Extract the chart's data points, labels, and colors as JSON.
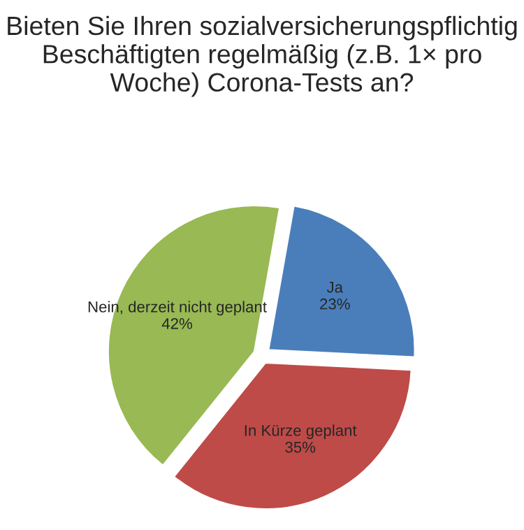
{
  "chart_data": {
    "type": "pie",
    "title": "Bieten Sie Ihren sozialversicherungspflichtig Beschäftigten regelmäßig (z.B. 1× pro Woche) Corona-Tests an?",
    "categories": [
      "Ja",
      "In Kürze geplant",
      "Nein, derzeit nicht geplant"
    ],
    "values": [
      23,
      35,
      42
    ],
    "value_labels": [
      "23%",
      "35%",
      "42%"
    ],
    "colors": [
      "#4a7ebb",
      "#be4b48",
      "#98b954"
    ],
    "legend": false
  }
}
